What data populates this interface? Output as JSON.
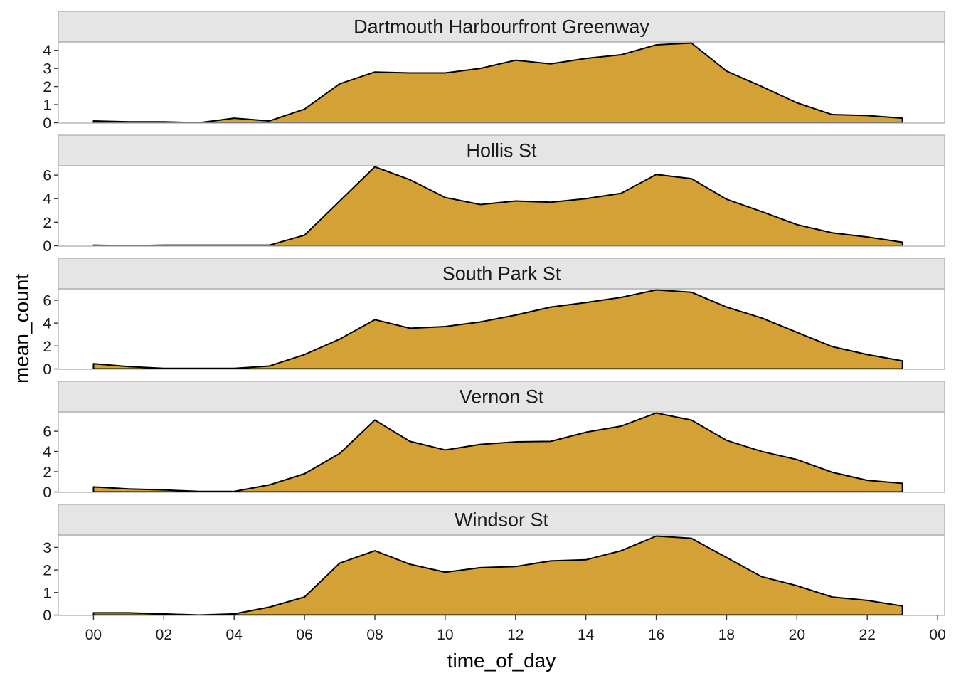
{
  "chart_data": {
    "type": "area",
    "xlabel": "time_of_day",
    "ylabel": "mean_count",
    "xlim": [
      -1,
      24.2
    ],
    "x_ticks": [
      "00",
      "02",
      "04",
      "06",
      "08",
      "10",
      "12",
      "14",
      "16",
      "18",
      "20",
      "22",
      "00"
    ],
    "x_tick_values": [
      0,
      2,
      4,
      6,
      8,
      10,
      12,
      14,
      16,
      18,
      20,
      22,
      24
    ],
    "fill_color": "#d4a136",
    "strip_color": "#e5e5e5",
    "x": [
      0,
      1,
      2,
      3,
      4,
      5,
      6,
      7,
      8,
      9,
      10,
      11,
      12,
      13,
      14,
      15,
      16,
      17,
      18,
      19,
      20,
      21,
      22,
      23
    ],
    "panels": [
      {
        "name": "Dartmouth Harbourfront Greenway",
        "ylim": [
          0,
          4.4
        ],
        "y_ticks": [
          "0",
          "1",
          "2",
          "3",
          "4"
        ],
        "y_tick_values": [
          0,
          1,
          2,
          3,
          4
        ],
        "values": [
          0.1,
          0.05,
          0.05,
          0.0,
          0.25,
          0.1,
          0.75,
          2.15,
          2.8,
          2.75,
          2.75,
          3.0,
          3.45,
          3.25,
          3.55,
          3.75,
          4.3,
          4.4,
          2.85,
          2.0,
          1.1,
          0.45,
          0.4,
          0.25
        ]
      },
      {
        "name": "Hollis St",
        "ylim": [
          0,
          6.7
        ],
        "y_ticks": [
          "0",
          "2",
          "4",
          "6"
        ],
        "y_tick_values": [
          0,
          2,
          4,
          6
        ],
        "values": [
          0.05,
          0.0,
          0.05,
          0.05,
          0.05,
          0.05,
          0.9,
          3.8,
          6.7,
          5.6,
          4.1,
          3.5,
          3.8,
          3.7,
          4.0,
          4.45,
          6.05,
          5.7,
          3.95,
          2.9,
          1.8,
          1.1,
          0.75,
          0.3
        ]
      },
      {
        "name": "South Park St",
        "ylim": [
          0,
          6.9
        ],
        "y_ticks": [
          "0",
          "2",
          "4",
          "6"
        ],
        "y_tick_values": [
          0,
          2,
          4,
          6
        ],
        "values": [
          0.45,
          0.2,
          0.05,
          0.05,
          0.05,
          0.25,
          1.25,
          2.6,
          4.3,
          3.55,
          3.7,
          4.1,
          4.7,
          5.4,
          5.8,
          6.25,
          6.9,
          6.7,
          5.4,
          4.45,
          3.2,
          1.95,
          1.25,
          0.7
        ]
      },
      {
        "name": "Vernon St",
        "ylim": [
          0,
          7.8
        ],
        "y_ticks": [
          "0",
          "2",
          "4",
          "6"
        ],
        "y_tick_values": [
          0,
          2,
          4,
          6
        ],
        "values": [
          0.5,
          0.3,
          0.2,
          0.05,
          0.05,
          0.7,
          1.8,
          3.8,
          7.1,
          5.0,
          4.15,
          4.7,
          4.95,
          5.0,
          5.9,
          6.5,
          7.8,
          7.1,
          5.1,
          4.0,
          3.2,
          1.95,
          1.15,
          0.85
        ]
      },
      {
        "name": "Windsor St",
        "ylim": [
          0,
          3.5
        ],
        "y_ticks": [
          "0",
          "1",
          "2",
          "3"
        ],
        "y_tick_values": [
          0,
          1,
          2,
          3
        ],
        "values": [
          0.1,
          0.1,
          0.05,
          0.0,
          0.05,
          0.35,
          0.8,
          2.3,
          2.85,
          2.25,
          1.9,
          2.1,
          2.15,
          2.4,
          2.45,
          2.85,
          3.5,
          3.4,
          2.55,
          1.7,
          1.3,
          0.8,
          0.65,
          0.4
        ]
      }
    ]
  }
}
